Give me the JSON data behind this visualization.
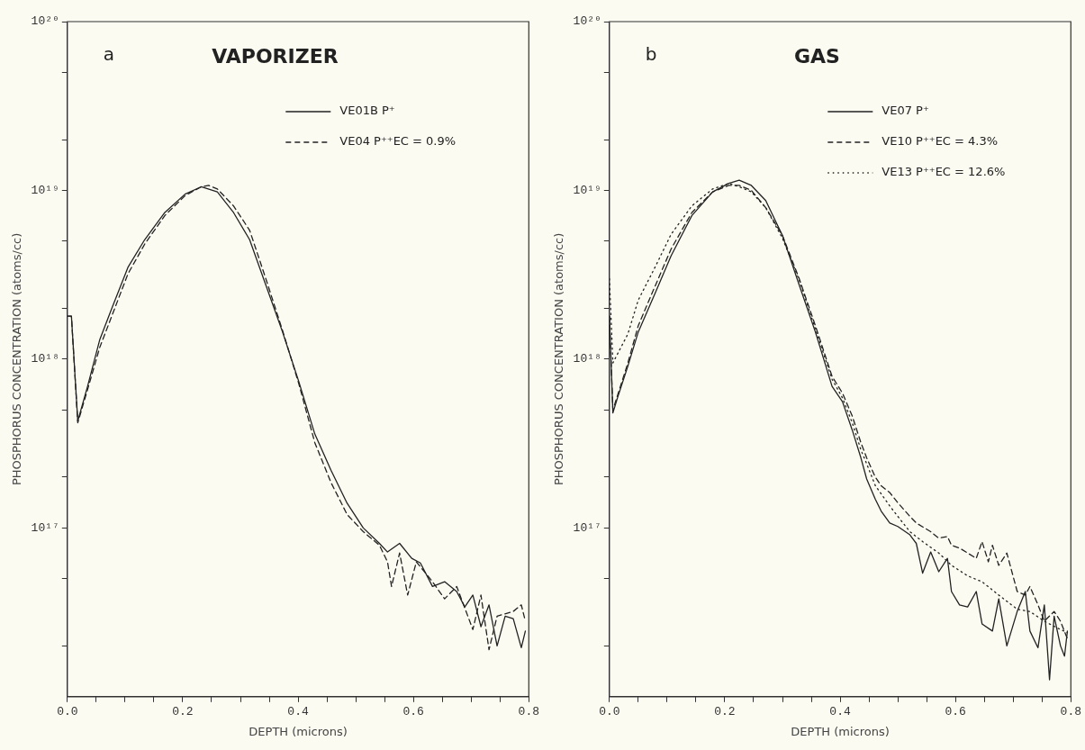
{
  "chart_data": [
    {
      "type": "line",
      "title": "VAPORIZER",
      "annotations": [
        "a"
      ],
      "xlabel": "DEPTH (microns)",
      "ylabel": "PHOSPHORUS CONCENTRATION (atoms/cc)",
      "log": "y",
      "legend": "top right",
      "xlim": [
        0,
        0.8
      ],
      "xticks": [
        {
          "value": 0,
          "label": "0.0"
        },
        {
          "value": 0.05,
          "label": null
        },
        {
          "value": 0.1,
          "label": null
        },
        {
          "value": 0.15,
          "label": null
        },
        {
          "value": 0.2,
          "label": "0.2"
        },
        {
          "value": 0.25,
          "label": null
        },
        {
          "value": 0.3,
          "label": null
        },
        {
          "value": 0.35,
          "label": null
        },
        {
          "value": 0.4,
          "label": "0.4"
        },
        {
          "value": 0.45,
          "label": null
        },
        {
          "value": 0.5,
          "label": null
        },
        {
          "value": 0.55,
          "label": null
        },
        {
          "value": 0.6,
          "label": "0.6"
        },
        {
          "value": 0.65,
          "label": null
        },
        {
          "value": 0.7,
          "label": null
        },
        {
          "value": 0.75,
          "label": null
        },
        {
          "value": 0.8,
          "label": "0.8"
        }
      ],
      "ylim": [
        1e+16,
        1e+20
      ],
      "yticks": [
        {
          "value": 1e+20,
          "label": "10²⁰"
        },
        {
          "value": 5e+19,
          "label": null
        },
        {
          "value": 2e+19,
          "label": null
        },
        {
          "value": 1e+19,
          "label": "10¹⁹"
        },
        {
          "value": 5e+18,
          "label": null
        },
        {
          "value": 2e+18,
          "label": null
        },
        {
          "value": 1e+18,
          "label": "10¹⁸"
        },
        {
          "value": 5e+17,
          "label": null
        },
        {
          "value": 2e+17,
          "label": null
        },
        {
          "value": 1e+17,
          "label": "10¹⁷"
        },
        {
          "value": 5e+16,
          "label": null
        },
        {
          "value": 2e+16,
          "label": null
        }
      ],
      "series": [
        {
          "name": "VE01B P⁺",
          "color": "#222222",
          "line_style": "solid",
          "x": [
            0,
            0.007,
            0.018,
            0.035,
            0.056,
            0.077,
            0.105,
            0.134,
            0.169,
            0.204,
            0.232,
            0.26,
            0.288,
            0.316,
            0.344,
            0.373,
            0.401,
            0.429,
            0.457,
            0.485,
            0.513,
            0.541,
            0.555,
            0.576,
            0.597,
            0.612,
            0.633,
            0.654,
            0.675,
            0.689,
            0.703,
            0.717,
            0.731,
            0.745,
            0.759,
            0.773,
            0.787,
            0.794
          ],
          "values": [
            1.8e+18,
            1.8e+18,
            4.3e+17,
            6.9e+17,
            1.3e+18,
            2e+18,
            3.5e+18,
            5.1e+18,
            7.4e+18,
            9.5e+18,
            1.05e+19,
            9.8e+18,
            7.4e+18,
            5.1e+18,
            2.75e+18,
            1.45e+18,
            7.4e+17,
            3.6e+17,
            2.2e+17,
            1.4e+17,
            1e+17,
            8.1e+16,
            7.2e+16,
            8.1e+16,
            6.6e+16,
            6.2e+16,
            4.5e+16,
            4.8e+16,
            4.2e+16,
            3.4e+16,
            4e+16,
            2.6e+16,
            3.5e+16,
            2e+16,
            3e+16,
            2.9e+16,
            1.95e+16,
            2.45e+16
          ]
        },
        {
          "name": "VE04 P⁺⁺EC = 0.9%",
          "color": "#222222",
          "line_style": "dashed",
          "x": [
            0,
            0.007,
            0.018,
            0.035,
            0.056,
            0.077,
            0.105,
            0.134,
            0.169,
            0.204,
            0.232,
            0.245,
            0.26,
            0.288,
            0.316,
            0.344,
            0.373,
            0.401,
            0.429,
            0.457,
            0.485,
            0.513,
            0.541,
            0.555,
            0.562,
            0.576,
            0.59,
            0.605,
            0.633,
            0.654,
            0.675,
            0.703,
            0.717,
            0.731,
            0.745,
            0.773,
            0.787,
            0.794
          ],
          "values": [
            1.8e+18,
            1.8e+18,
            4.2e+17,
            6.6e+17,
            1.17e+18,
            1.8e+18,
            3.2e+18,
            4.8e+18,
            7.1e+18,
            9.3e+18,
            1.05e+19,
            1.07e+19,
            1.02e+19,
            8.1e+18,
            5.8e+18,
            3e+18,
            1.48e+18,
            7.2e+17,
            3.2e+17,
            1.86e+17,
            1.2e+17,
            9.5e+16,
            7.9e+16,
            6.3e+16,
            4.5e+16,
            7.1e+16,
            4e+16,
            6.3e+16,
            4.8e+16,
            3.8e+16,
            4.5e+16,
            2.5e+16,
            4e+16,
            1.9e+16,
            3e+16,
            3.2e+16,
            3.5e+16,
            2.8e+16
          ]
        }
      ]
    },
    {
      "type": "line",
      "title": "GAS",
      "annotations": [
        "b"
      ],
      "xlabel": "DEPTH (microns)",
      "ylabel": "PHOSPHORUS CONCENTRATION (atoms/cc)",
      "log": "y",
      "legend": "top right",
      "xlim": [
        0,
        0.8
      ],
      "xticks": [
        {
          "value": 0,
          "label": "0.0"
        },
        {
          "value": 0.05,
          "label": null
        },
        {
          "value": 0.1,
          "label": null
        },
        {
          "value": 0.15,
          "label": null
        },
        {
          "value": 0.2,
          "label": "0.2"
        },
        {
          "value": 0.25,
          "label": null
        },
        {
          "value": 0.3,
          "label": null
        },
        {
          "value": 0.35,
          "label": null
        },
        {
          "value": 0.4,
          "label": "0.4"
        },
        {
          "value": 0.45,
          "label": null
        },
        {
          "value": 0.5,
          "label": null
        },
        {
          "value": 0.55,
          "label": null
        },
        {
          "value": 0.6,
          "label": "0.6"
        },
        {
          "value": 0.65,
          "label": null
        },
        {
          "value": 0.7,
          "label": null
        },
        {
          "value": 0.75,
          "label": null
        },
        {
          "value": 0.8,
          "label": "0.8"
        }
      ],
      "ylim": [
        1e+16,
        1e+20
      ],
      "yticks": [
        {
          "value": 1e+20,
          "label": "10²⁰"
        },
        {
          "value": 5e+19,
          "label": null
        },
        {
          "value": 2e+19,
          "label": null
        },
        {
          "value": 1e+19,
          "label": "10¹⁹"
        },
        {
          "value": 5e+18,
          "label": null
        },
        {
          "value": 2e+18,
          "label": null
        },
        {
          "value": 1e+18,
          "label": "10¹⁸"
        },
        {
          "value": 5e+17,
          "label": null
        },
        {
          "value": 2e+17,
          "label": null
        },
        {
          "value": 1e+17,
          "label": "10¹⁷"
        },
        {
          "value": 5e+16,
          "label": null
        },
        {
          "value": 2e+16,
          "label": null
        }
      ],
      "series": [
        {
          "name": "VE07 P⁺",
          "color": "#222222",
          "line_style": "solid",
          "x": [
            0,
            0.006,
            0.014,
            0.032,
            0.05,
            0.079,
            0.107,
            0.143,
            0.179,
            0.207,
            0.225,
            0.246,
            0.271,
            0.3,
            0.329,
            0.357,
            0.386,
            0.404,
            0.421,
            0.436,
            0.446,
            0.461,
            0.471,
            0.486,
            0.5,
            0.521,
            0.532,
            0.543,
            0.557,
            0.571,
            0.586,
            0.593,
            0.607,
            0.621,
            0.636,
            0.646,
            0.664,
            0.675,
            0.689,
            0.707,
            0.721,
            0.729,
            0.743,
            0.754,
            0.763,
            0.771,
            0.782,
            0.789,
            0.794
          ],
          "values": [
            1.8e+18,
            4.8e+17,
            5.9e+17,
            9.1e+17,
            1.45e+18,
            2.45e+18,
            4.1e+18,
            7.1e+18,
            9.8e+18,
            1.1e+19,
            1.15e+19,
            1.07e+19,
            8.7e+18,
            5.4e+18,
            2.75e+18,
            1.45e+18,
            6.9e+17,
            5.6e+17,
            3.8e+17,
            2.6e+17,
            1.95e+17,
            1.48e+17,
            1.26e+17,
            1.07e+17,
            1.02e+17,
            9.1e+16,
            8.1e+16,
            5.4e+16,
            7.2e+16,
            5.5e+16,
            6.6e+16,
            4.2e+16,
            3.5e+16,
            3.4e+16,
            4.2e+16,
            2.7e+16,
            2.45e+16,
            3.8e+16,
            2e+16,
            3.2e+16,
            4.2e+16,
            2.45e+16,
            1.95e+16,
            3.5e+16,
            1.26e+16,
            3e+16,
            2e+16,
            1.74e+16,
            2.45e+16
          ]
        },
        {
          "name": "VE10 P⁺⁺EC = 4.3%",
          "color": "#222222",
          "line_style": "dashed",
          "x": [
            0,
            0.006,
            0.032,
            0.05,
            0.079,
            0.107,
            0.143,
            0.179,
            0.207,
            0.225,
            0.246,
            0.271,
            0.3,
            0.329,
            0.357,
            0.386,
            0.404,
            0.421,
            0.436,
            0.446,
            0.461,
            0.471,
            0.486,
            0.5,
            0.521,
            0.532,
            0.557,
            0.571,
            0.586,
            0.593,
            0.607,
            0.621,
            0.636,
            0.646,
            0.657,
            0.664,
            0.675,
            0.689,
            0.707,
            0.721,
            0.729,
            0.743,
            0.754,
            0.771,
            0.782,
            0.794
          ],
          "values": [
            1.8e+18,
            5e+17,
            9.5e+17,
            1.58e+18,
            2.7e+18,
            4.5e+18,
            7.4e+18,
            9.8e+18,
            1.07e+19,
            1.07e+19,
            1e+19,
            7.9e+18,
            5.4e+18,
            3e+18,
            1.58e+18,
            7.9e+17,
            6.3e+17,
            4.6e+17,
            3.2e+17,
            2.6e+17,
            2e+17,
            1.78e+17,
            1.62e+17,
            1.41e+17,
            1.17e+17,
            1.07e+17,
            9.5e+16,
            8.7e+16,
            8.9e+16,
            7.9e+16,
            7.6e+16,
            7.1e+16,
            6.6e+16,
            8.3e+16,
            6.3e+16,
            7.9e+16,
            6e+16,
            7.1e+16,
            4.2e+16,
            4e+16,
            4.5e+16,
            3.5e+16,
            2.8e+16,
            3.2e+16,
            2.8e+16,
            2.2e+16
          ]
        },
        {
          "name": "VE13 P⁺⁺EC = 12.6%",
          "color": "#222222",
          "line_style": "dotted",
          "x": [
            0,
            0.006,
            0.032,
            0.05,
            0.079,
            0.107,
            0.143,
            0.179,
            0.207,
            0.225,
            0.246,
            0.271,
            0.3,
            0.329,
            0.357,
            0.386,
            0.404,
            0.421,
            0.436,
            0.446,
            0.461,
            0.486,
            0.5,
            0.521,
            0.543,
            0.571,
            0.593,
            0.621,
            0.646,
            0.675,
            0.707,
            0.729,
            0.754,
            0.782,
            0.794
          ],
          "values": [
            3e+18,
            9.5e+17,
            1.41e+18,
            2.24e+18,
            3.5e+18,
            5.5e+18,
            8.1e+18,
            1.02e+19,
            1.1e+19,
            1.05e+19,
            9.8e+18,
            7.9e+18,
            5.2e+18,
            2.95e+18,
            1.51e+18,
            7.6e+17,
            5.9e+17,
            4.2e+17,
            2.9e+17,
            2.4e+17,
            1.78e+17,
            1.35e+17,
            1.17e+17,
            9.5e+16,
            8.3e+16,
            7.1e+16,
            6e+16,
            5.2e+16,
            4.8e+16,
            4e+16,
            3.3e+16,
            3.2e+16,
            2.8e+16,
            2.5e+16,
            2.4e+16
          ]
        }
      ]
    }
  ]
}
